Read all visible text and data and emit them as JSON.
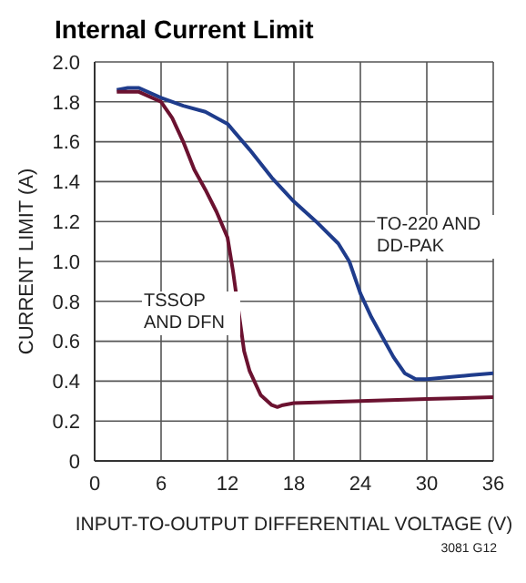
{
  "chart_data": {
    "type": "line",
    "title": "Internal Current Limit",
    "xlabel": "INPUT-TO-OUTPUT DIFFERENTIAL VOLTAGE (V)",
    "ylabel": "CURRENT LIMIT (A)",
    "annotations": [
      "3081 G12"
    ],
    "xlim": [
      0,
      36
    ],
    "xticks": [
      0,
      6,
      12,
      18,
      24,
      30,
      36
    ],
    "ylim": [
      0,
      2
    ],
    "yticks": [
      0,
      0.2,
      0.4,
      0.6,
      0.8,
      {
        "value": 1,
        "label": "1.0"
      },
      1.2,
      1.4,
      1.6,
      1.8,
      {
        "value": 2,
        "label": "2.0"
      }
    ],
    "grid": true,
    "legend": false,
    "marker": "none",
    "line_style": "solid",
    "series": [
      {
        "name": "TO-220 AND DD-PAK",
        "color": "#1f3c8c",
        "x": [
          2,
          3,
          4,
          6,
          8,
          10,
          12,
          14,
          16,
          18,
          20,
          22,
          23,
          24,
          25,
          26,
          27,
          28,
          29,
          30,
          32,
          34,
          36
        ],
        "values": [
          1.86,
          1.87,
          1.87,
          1.82,
          1.78,
          1.75,
          1.69,
          1.56,
          1.42,
          1.3,
          1.2,
          1.09,
          1.0,
          0.84,
          0.72,
          0.62,
          0.52,
          0.44,
          0.41,
          0.41,
          0.42,
          0.43,
          0.44
        ]
      },
      {
        "name": "TSSOP AND DFN",
        "color": "#6b1230",
        "x": [
          2,
          4,
          6,
          7,
          8,
          9,
          10,
          11,
          12,
          12.5,
          13,
          13.5,
          14,
          15,
          16,
          16.5,
          17,
          18,
          24,
          30,
          36
        ],
        "values": [
          1.85,
          1.85,
          1.8,
          1.72,
          1.6,
          1.46,
          1.36,
          1.25,
          1.12,
          0.95,
          0.75,
          0.55,
          0.45,
          0.33,
          0.28,
          0.27,
          0.28,
          0.29,
          0.3,
          0.31,
          0.32
        ]
      }
    ]
  }
}
